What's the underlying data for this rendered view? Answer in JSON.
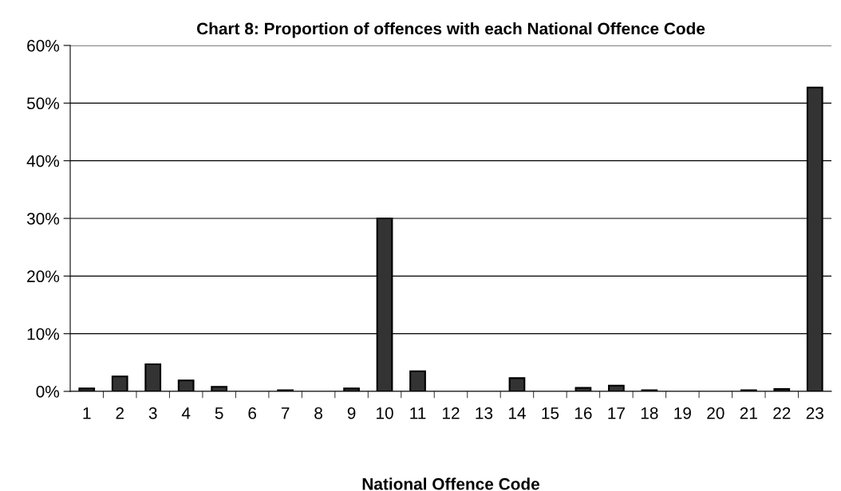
{
  "chart_data": {
    "type": "bar",
    "title": "Chart 8: Proportion of offences with each National Offence Code",
    "xlabel": "National Offence Code",
    "categories": [
      "1",
      "2",
      "3",
      "4",
      "5",
      "6",
      "7",
      "8",
      "9",
      "10",
      "11",
      "12",
      "13",
      "14",
      "15",
      "16",
      "17",
      "18",
      "19",
      "20",
      "21",
      "22",
      "23"
    ],
    "values": [
      0.5,
      2.6,
      4.7,
      1.9,
      0.8,
      0,
      0.2,
      0,
      0.5,
      30,
      3.5,
      0,
      0,
      2.3,
      0,
      0.6,
      1.0,
      0.2,
      0,
      0,
      0.2,
      0.4,
      52.7
    ],
    "color": "#333333",
    "ylim": [
      0,
      60
    ],
    "yticks": [
      {
        "value": 0,
        "label": "0%"
      },
      {
        "value": 10,
        "label": "10%"
      },
      {
        "value": 20,
        "label": "20%"
      },
      {
        "value": 30,
        "label": "30%"
      },
      {
        "value": 40,
        "label": "40%"
      },
      {
        "value": 50,
        "label": "50%"
      },
      {
        "value": 60,
        "label": "60%"
      }
    ],
    "grid": "y"
  }
}
